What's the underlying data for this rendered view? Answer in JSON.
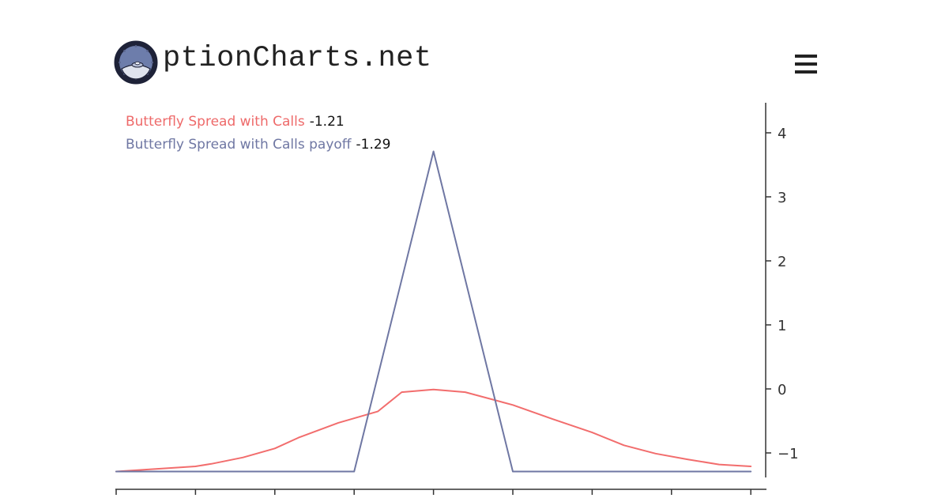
{
  "header": {
    "brand": "ptionCharts.net",
    "logo_icon": "porthole-spaceship-icon",
    "menu_icon": "hamburger-menu-icon"
  },
  "legend": {
    "items": [
      {
        "name": "Butterfly Spread with Calls",
        "value": "-1.21",
        "color": "#f26d6d"
      },
      {
        "name": "Butterfly Spread with Calls payoff",
        "value": "-1.29",
        "color": "#6f77a3"
      }
    ]
  },
  "chart_data": {
    "type": "line",
    "title": "",
    "xlabel": "",
    "ylabel": "",
    "y_axis_position": "right",
    "ylim": [
      -1.3,
      4.4
    ],
    "xlim": [
      0,
      8
    ],
    "x_ticks": [
      0,
      1,
      2,
      3,
      4,
      5,
      6,
      7,
      8
    ],
    "y_ticks": [
      4,
      3,
      2,
      1,
      0,
      -1
    ],
    "y_tick_labels": [
      "4",
      "3",
      "2",
      "1",
      "0",
      "−1"
    ],
    "grid": false,
    "legend": "top-left",
    "series": [
      {
        "name": "Butterfly Spread with Calls",
        "color": "#f26d6d",
        "x": [
          0,
          0.5,
          1,
          1.2,
          1.6,
          2,
          2.3,
          2.8,
          3.3,
          3.6,
          4,
          4.4,
          5,
          5.5,
          6,
          6.4,
          6.8,
          7.2,
          7.6,
          8
        ],
        "y": [
          -1.29,
          -1.25,
          -1.21,
          -1.17,
          -1.07,
          -0.93,
          -0.76,
          -0.53,
          -0.35,
          -0.05,
          -0.01,
          -0.05,
          -0.25,
          -0.47,
          -0.68,
          -0.88,
          -1.01,
          -1.1,
          -1.18,
          -1.21
        ]
      },
      {
        "name": "Butterfly Spread with Calls payoff",
        "color": "#6f77a3",
        "x": [
          0,
          3,
          4,
          5,
          8
        ],
        "y": [
          -1.29,
          -1.29,
          3.71,
          -1.29,
          -1.29
        ]
      }
    ]
  }
}
